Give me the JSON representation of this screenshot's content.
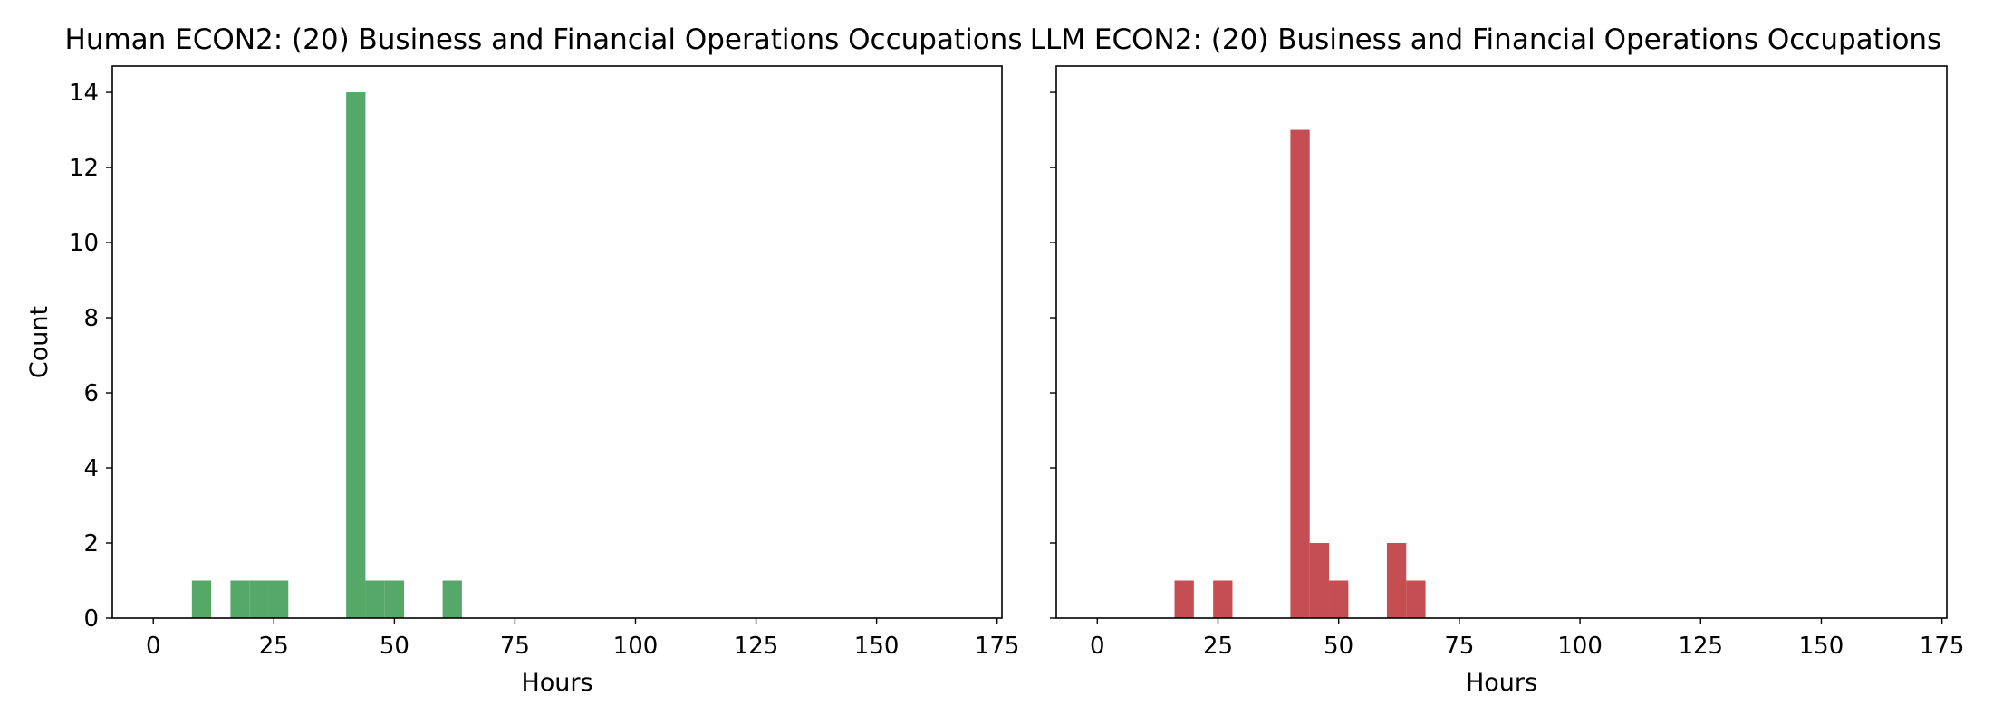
{
  "chart_data": [
    {
      "type": "histogram",
      "title": "Human ECON2: (20) Business and Financial Operations Occupations",
      "xlabel": "Hours",
      "ylabel": "Count",
      "xlim": [
        -8.5,
        176
      ],
      "ylim": [
        0,
        14.7
      ],
      "xticks": [
        0,
        25,
        50,
        75,
        100,
        125,
        150,
        175
      ],
      "yticks": [
        0,
        2,
        4,
        6,
        8,
        10,
        12,
        14
      ],
      "color": "#55a868",
      "bins": [
        {
          "x0": 8,
          "x1": 12,
          "count": 1
        },
        {
          "x0": 16,
          "x1": 20,
          "count": 1
        },
        {
          "x0": 20,
          "x1": 24,
          "count": 1
        },
        {
          "x0": 24,
          "x1": 28,
          "count": 1
        },
        {
          "x0": 40,
          "x1": 44,
          "count": 14
        },
        {
          "x0": 44,
          "x1": 48,
          "count": 1
        },
        {
          "x0": 48,
          "x1": 52,
          "count": 1
        },
        {
          "x0": 60,
          "x1": 64,
          "count": 1
        }
      ]
    },
    {
      "type": "histogram",
      "title": "LLM ECON2: (20) Business and Financial Operations Occupations",
      "xlabel": "Hours",
      "ylabel": "",
      "xlim": [
        -8.5,
        176
      ],
      "ylim": [
        0,
        14.7
      ],
      "xticks": [
        0,
        25,
        50,
        75,
        100,
        125,
        150,
        175
      ],
      "yticks": [
        0,
        2,
        4,
        6,
        8,
        10,
        12,
        14
      ],
      "show_ytick_labels": false,
      "color": "#c44e52",
      "bins": [
        {
          "x0": 16,
          "x1": 20,
          "count": 1
        },
        {
          "x0": 24,
          "x1": 28,
          "count": 1
        },
        {
          "x0": 40,
          "x1": 44,
          "count": 13
        },
        {
          "x0": 44,
          "x1": 48,
          "count": 2
        },
        {
          "x0": 48,
          "x1": 52,
          "count": 1
        },
        {
          "x0": 60,
          "x1": 64,
          "count": 2
        },
        {
          "x0": 64,
          "x1": 68,
          "count": 1
        }
      ]
    }
  ]
}
